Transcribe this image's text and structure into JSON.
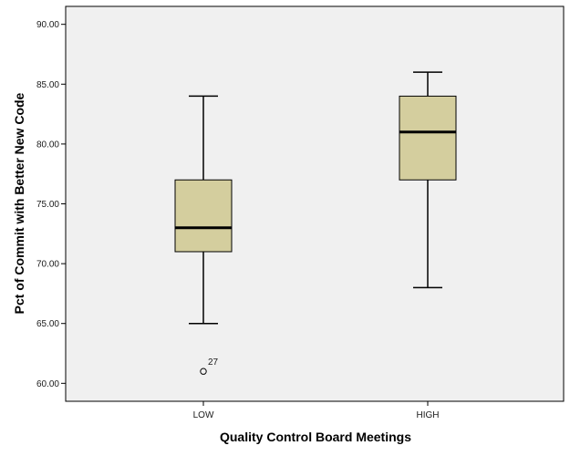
{
  "chart_data": {
    "type": "boxplot",
    "xlabel": "Quality Control Board Meetings",
    "ylabel": "Pct of Commit with Better New Code",
    "ylim": [
      58.5,
      91.5
    ],
    "yticks": [
      60,
      65,
      70,
      75,
      80,
      85,
      90
    ],
    "ytick_labels": [
      "60.00",
      "65.00",
      "70.00",
      "75.00",
      "80.00",
      "85.00",
      "90.00"
    ],
    "categories": [
      "LOW",
      "HIGH"
    ],
    "boxes": [
      {
        "category": "LOW",
        "whisker_low": 65,
        "q1": 71,
        "median": 73,
        "q3": 77,
        "whisker_high": 84,
        "outliers": [
          {
            "value": 61,
            "label": "27"
          }
        ]
      },
      {
        "category": "HIGH",
        "whisker_low": 68,
        "q1": 77,
        "median": 81,
        "q3": 84,
        "whisker_high": 86,
        "outliers": []
      }
    ],
    "grid": false,
    "colors": {
      "plot_background": "#f0f0f0",
      "box_fill": "#d4ce9e",
      "stroke": "#000000"
    }
  }
}
